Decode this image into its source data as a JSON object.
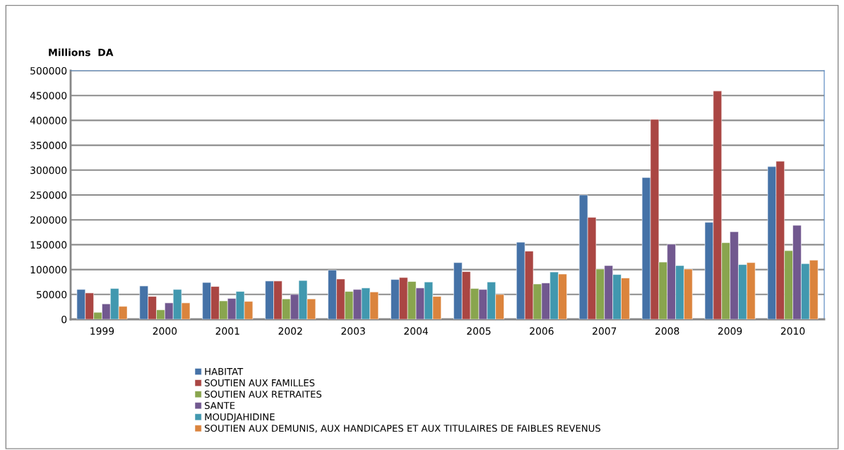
{
  "chart_data": {
    "type": "bar",
    "ylabel": "Millions  DA",
    "categories": [
      "1999",
      "2000",
      "2001",
      "2002",
      "2003",
      "2004",
      "2005",
      "2006",
      "2007",
      "2008",
      "2009",
      "2010"
    ],
    "series": [
      {
        "name": "HABITAT",
        "color": "#4572a7",
        "values": [
          60000,
          67000,
          74000,
          77000,
          99000,
          80000,
          114000,
          155000,
          250000,
          285000,
          195000,
          307000
        ]
      },
      {
        "name": "SOUTIEN AUX FAMILLES",
        "color": "#aa4643",
        "values": [
          53000,
          46000,
          66000,
          77000,
          81000,
          84000,
          96000,
          137000,
          205000,
          402000,
          459000,
          318000
        ]
      },
      {
        "name": "SOUTIEN AUX RETRAITES",
        "color": "#89a54e",
        "values": [
          14000,
          19000,
          37000,
          41000,
          56000,
          76000,
          62000,
          71000,
          101000,
          115000,
          154000,
          138000
        ]
      },
      {
        "name": "SANTE",
        "color": "#71588f",
        "values": [
          31000,
          33000,
          42000,
          50000,
          60000,
          63000,
          60000,
          73000,
          108000,
          151000,
          176000,
          189000
        ]
      },
      {
        "name": "MOUDJAHIDINE",
        "color": "#4198af",
        "values": [
          62000,
          60000,
          56000,
          78000,
          63000,
          75000,
          75000,
          95000,
          90000,
          108000,
          110000,
          112000
        ]
      },
      {
        "name": "SOUTIEN AUX DEMUNIS, AUX HANDICAPES ET AUX TITULAIRES DE FAIBLES REVENUS",
        "color": "#db843d",
        "values": [
          26000,
          33000,
          36000,
          41000,
          55000,
          46000,
          50000,
          91000,
          83000,
          101000,
          114000,
          119000
        ]
      }
    ],
    "ylim": [
      0,
      500000
    ],
    "yticks": [
      0,
      50000,
      100000,
      150000,
      200000,
      250000,
      300000,
      350000,
      400000,
      450000,
      500000
    ],
    "grid": "y",
    "legend": "bottom"
  }
}
